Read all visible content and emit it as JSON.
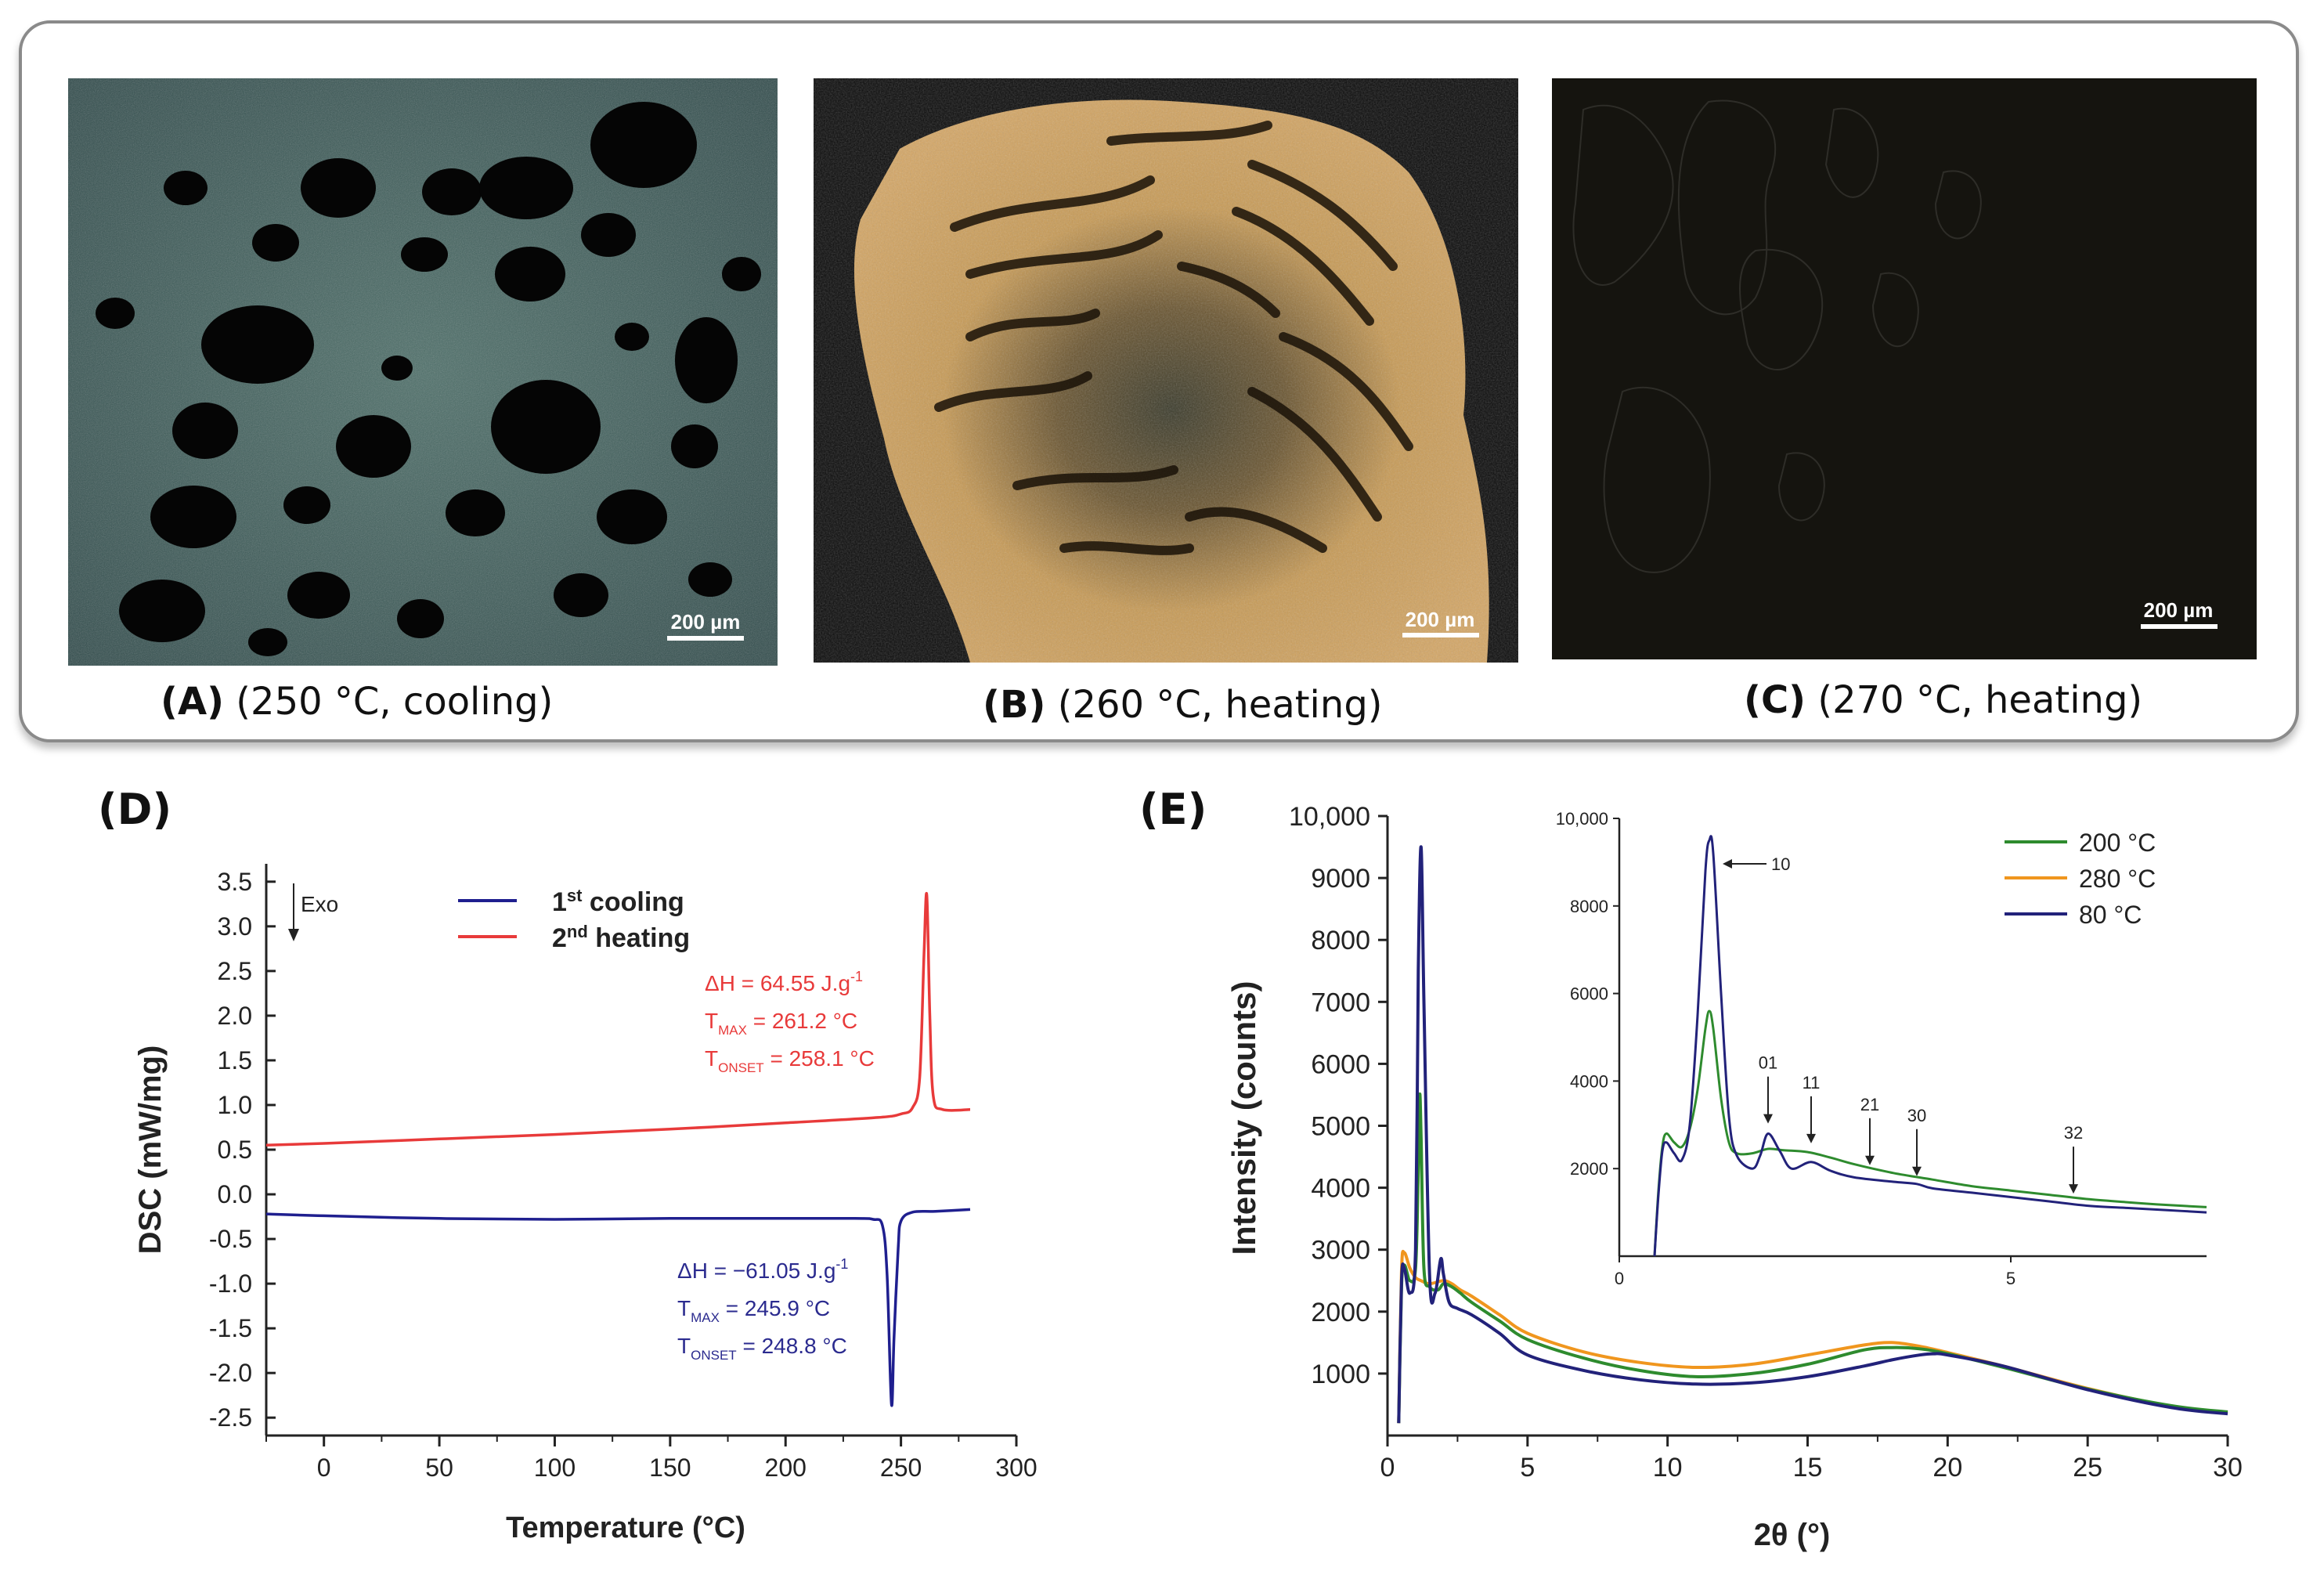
{
  "micrographs": [
    {
      "letter": "(A)",
      "condition": "(250 °C, cooling)",
      "scale": "200 µm"
    },
    {
      "letter": "(B)",
      "condition": "(260 °C, heating)",
      "scale": "200 µm"
    },
    {
      "letter": "(C)",
      "condition": "(270 °C, heating)",
      "scale": "200 µm"
    }
  ],
  "colors": {
    "cooling": "#1f1f8f",
    "heating": "#e83a3a",
    "xrd_200": "#2e8b2e",
    "xrd_280": "#f0961e",
    "xrd_80": "#22227a"
  },
  "chart_data": [
    {
      "panel": "(D)",
      "type": "line",
      "xlabel": "Temperature (°C)",
      "ylabel": "DSC (mW/mg)",
      "xlim": [
        -25,
        300
      ],
      "ylim": [
        -2.7,
        3.7
      ],
      "xticks": [
        0,
        50,
        100,
        150,
        200,
        250,
        300
      ],
      "yticks": [
        -2.5,
        -2.0,
        -1.5,
        -1.0,
        -0.5,
        0.0,
        0.5,
        1.0,
        1.5,
        2.0,
        2.5,
        3.0,
        3.5
      ],
      "ytick_labels": [
        "-2.5",
        "-2.0",
        "-1.5",
        "-1.0",
        "-0.5",
        "0.0",
        "0.5",
        "1.0",
        "1.5",
        "2.0",
        "2.5",
        "3.0",
        "3.5"
      ],
      "exo_label": "Exo",
      "legend": {
        "cooling": "1",
        "cooling_sup": "st",
        "cooling_rest": " cooling",
        "heating": "2",
        "heating_sup": "nd",
        "heating_rest": " heating"
      },
      "series": [
        {
          "name": "1st cooling",
          "color": "#1f1f8f",
          "x": [
            -25,
            0,
            50,
            100,
            150,
            200,
            230,
            238,
            242,
            244,
            245.9,
            247,
            248.8,
            250,
            255,
            265,
            280
          ],
          "y": [
            -0.22,
            -0.24,
            -0.27,
            -0.28,
            -0.27,
            -0.27,
            -0.27,
            -0.28,
            -0.35,
            -0.9,
            -2.35,
            -1.6,
            -0.6,
            -0.3,
            -0.2,
            -0.19,
            -0.17
          ]
        },
        {
          "name": "2nd heating",
          "color": "#e83a3a",
          "x": [
            -25,
            0,
            50,
            100,
            150,
            200,
            240,
            250,
            255,
            258.1,
            260,
            261.2,
            262.5,
            264,
            268,
            280
          ],
          "y": [
            0.55,
            0.57,
            0.62,
            0.67,
            0.73,
            0.8,
            0.86,
            0.9,
            0.97,
            1.3,
            2.7,
            3.35,
            2.0,
            1.1,
            0.95,
            0.95
          ]
        }
      ],
      "annotations": {
        "heating": {
          "dh": "ΔH = 64.55 J.g",
          "dh_sup": "-1",
          "tmax_main": "T",
          "tmax_sub": "MAX",
          "tmax_val": " = 261.2 °C",
          "tonset_main": "T",
          "tonset_sub": "ONSET",
          "tonset_val": " = 258.1 °C"
        },
        "cooling": {
          "dh": "ΔH = −61.05 J.g",
          "dh_sup": "-1",
          "tmax_main": "T",
          "tmax_sub": "MAX",
          "tmax_val": " = 245.9 °C",
          "tonset_main": "T",
          "tonset_sub": "ONSET",
          "tonset_val": " = 248.8 °C"
        }
      }
    },
    {
      "panel": "(E)",
      "type": "line",
      "xlabel": "2θ (°)",
      "ylabel": "Intensity (counts)",
      "xlim": [
        0,
        30
      ],
      "ylim": [
        0,
        10000
      ],
      "xticks": [
        0,
        5,
        10,
        15,
        20,
        25,
        30
      ],
      "yticks": [
        1000,
        2000,
        3000,
        4000,
        5000,
        6000,
        7000,
        8000,
        9000,
        10000
      ],
      "ytick_labels": [
        "1000",
        "2000",
        "3000",
        "4000",
        "5000",
        "6000",
        "7000",
        "8000",
        "9000",
        "10,000"
      ],
      "legend": [
        "200 °C",
        "280 °C",
        "80 °C"
      ],
      "series": [
        {
          "name": "200 °C",
          "color": "#2e8b2e",
          "x": [
            0.4,
            0.5,
            0.6,
            0.8,
            1.0,
            1.1,
            1.15,
            1.2,
            1.3,
            1.5,
            1.8,
            2.0,
            2.3,
            2.6,
            3,
            4,
            5,
            7,
            9,
            11,
            13,
            15,
            17,
            18,
            19,
            20,
            22,
            25,
            28,
            30
          ],
          "y": [
            200,
            2400,
            2750,
            2500,
            2700,
            4300,
            5500,
            4800,
            2700,
            2400,
            2350,
            2450,
            2400,
            2300,
            2150,
            1850,
            1550,
            1250,
            1050,
            950,
            1000,
            1150,
            1380,
            1420,
            1400,
            1320,
            1100,
            750,
            480,
            380
          ]
        },
        {
          "name": "280 °C",
          "color": "#f0961e",
          "x": [
            0.4,
            0.5,
            0.6,
            0.8,
            1.0,
            1.2,
            1.5,
            2.0,
            2.3,
            2.6,
            3,
            4,
            5,
            7,
            9,
            11,
            13,
            15,
            17,
            18,
            19,
            20,
            22,
            25,
            28,
            30
          ],
          "y": [
            200,
            2650,
            2950,
            2700,
            2550,
            2500,
            2450,
            2500,
            2450,
            2350,
            2250,
            1950,
            1650,
            1350,
            1180,
            1100,
            1150,
            1300,
            1460,
            1500,
            1440,
            1340,
            1120,
            760,
            470,
            370
          ]
        },
        {
          "name": "80 °C",
          "color": "#22227a",
          "x": [
            0.4,
            0.5,
            0.6,
            0.8,
            1.0,
            1.1,
            1.2,
            1.3,
            1.5,
            1.7,
            1.9,
            2.0,
            2.2,
            2.5,
            3,
            4,
            5,
            7,
            9,
            11,
            13,
            15,
            17,
            18,
            19,
            19.5,
            20,
            22,
            25,
            28,
            30
          ],
          "y": [
            200,
            2500,
            2700,
            2300,
            3000,
            7500,
            9500,
            7000,
            2600,
            2300,
            2850,
            2600,
            2150,
            2050,
            1950,
            1650,
            1300,
            1050,
            900,
            830,
            850,
            950,
            1120,
            1220,
            1300,
            1320,
            1300,
            1120,
            740,
            450,
            350
          ]
        }
      ],
      "inset": {
        "xlim": [
          0,
          7.5
        ],
        "ylim": [
          0,
          10000
        ],
        "xticks": [
          0,
          5
        ],
        "yticks": [
          2000,
          4000,
          6000,
          8000,
          10000
        ],
        "ytick_labels": [
          "2000",
          "4000",
          "6000",
          "8000",
          "10,000"
        ],
        "peaks": [
          {
            "label": "10",
            "x": 1.2,
            "y": 9500,
            "dir": "left"
          },
          {
            "label": "01",
            "x": 1.9,
            "y": 2850,
            "dir": "down"
          },
          {
            "label": "11",
            "x": 2.45,
            "y": 2400,
            "dir": "down"
          },
          {
            "label": "21",
            "x": 3.2,
            "y": 1900,
            "dir": "down"
          },
          {
            "label": "30",
            "x": 3.8,
            "y": 1650,
            "dir": "down"
          },
          {
            "label": "32",
            "x": 5.8,
            "y": 1250,
            "dir": "down"
          }
        ],
        "series": [
          {
            "name": "200 °C",
            "color": "#2e8b2e",
            "x": [
              0.45,
              0.5,
              0.55,
              0.6,
              0.7,
              0.8,
              0.9,
              1.0,
              1.1,
              1.15,
              1.2,
              1.3,
              1.4,
              1.5,
              1.7,
              1.9,
              2.1,
              2.4,
              2.7,
              3.0,
              3.5,
              4,
              4.5,
              5,
              5.5,
              6,
              6.5,
              7,
              7.5
            ],
            "y": [
              0,
              1500,
              2500,
              2800,
              2600,
              2500,
              2900,
              3800,
              5200,
              5600,
              5200,
              3600,
              2600,
              2350,
              2350,
              2450,
              2420,
              2380,
              2250,
              2100,
              1900,
              1750,
              1600,
              1500,
              1400,
              1300,
              1230,
              1170,
              1120
            ]
          },
          {
            "name": "80 °C",
            "color": "#22227a",
            "x": [
              0.45,
              0.5,
              0.55,
              0.6,
              0.7,
              0.8,
              0.9,
              1.0,
              1.1,
              1.15,
              1.2,
              1.3,
              1.4,
              1.5,
              1.7,
              1.8,
              1.9,
              2.05,
              2.2,
              2.45,
              2.7,
              3.0,
              3.5,
              3.8,
              4,
              4.5,
              5,
              5.5,
              6,
              6.5,
              7,
              7.5
            ],
            "y": [
              0,
              1400,
              2400,
              2600,
              2350,
              2200,
              3000,
              5500,
              8800,
              9500,
              9200,
              6000,
              3200,
              2300,
              2000,
              2300,
              2800,
              2400,
              2000,
              2150,
              1950,
              1800,
              1700,
              1650,
              1550,
              1450,
              1350,
              1250,
              1150,
              1100,
              1050,
              1000
            ]
          }
        ]
      }
    }
  ]
}
